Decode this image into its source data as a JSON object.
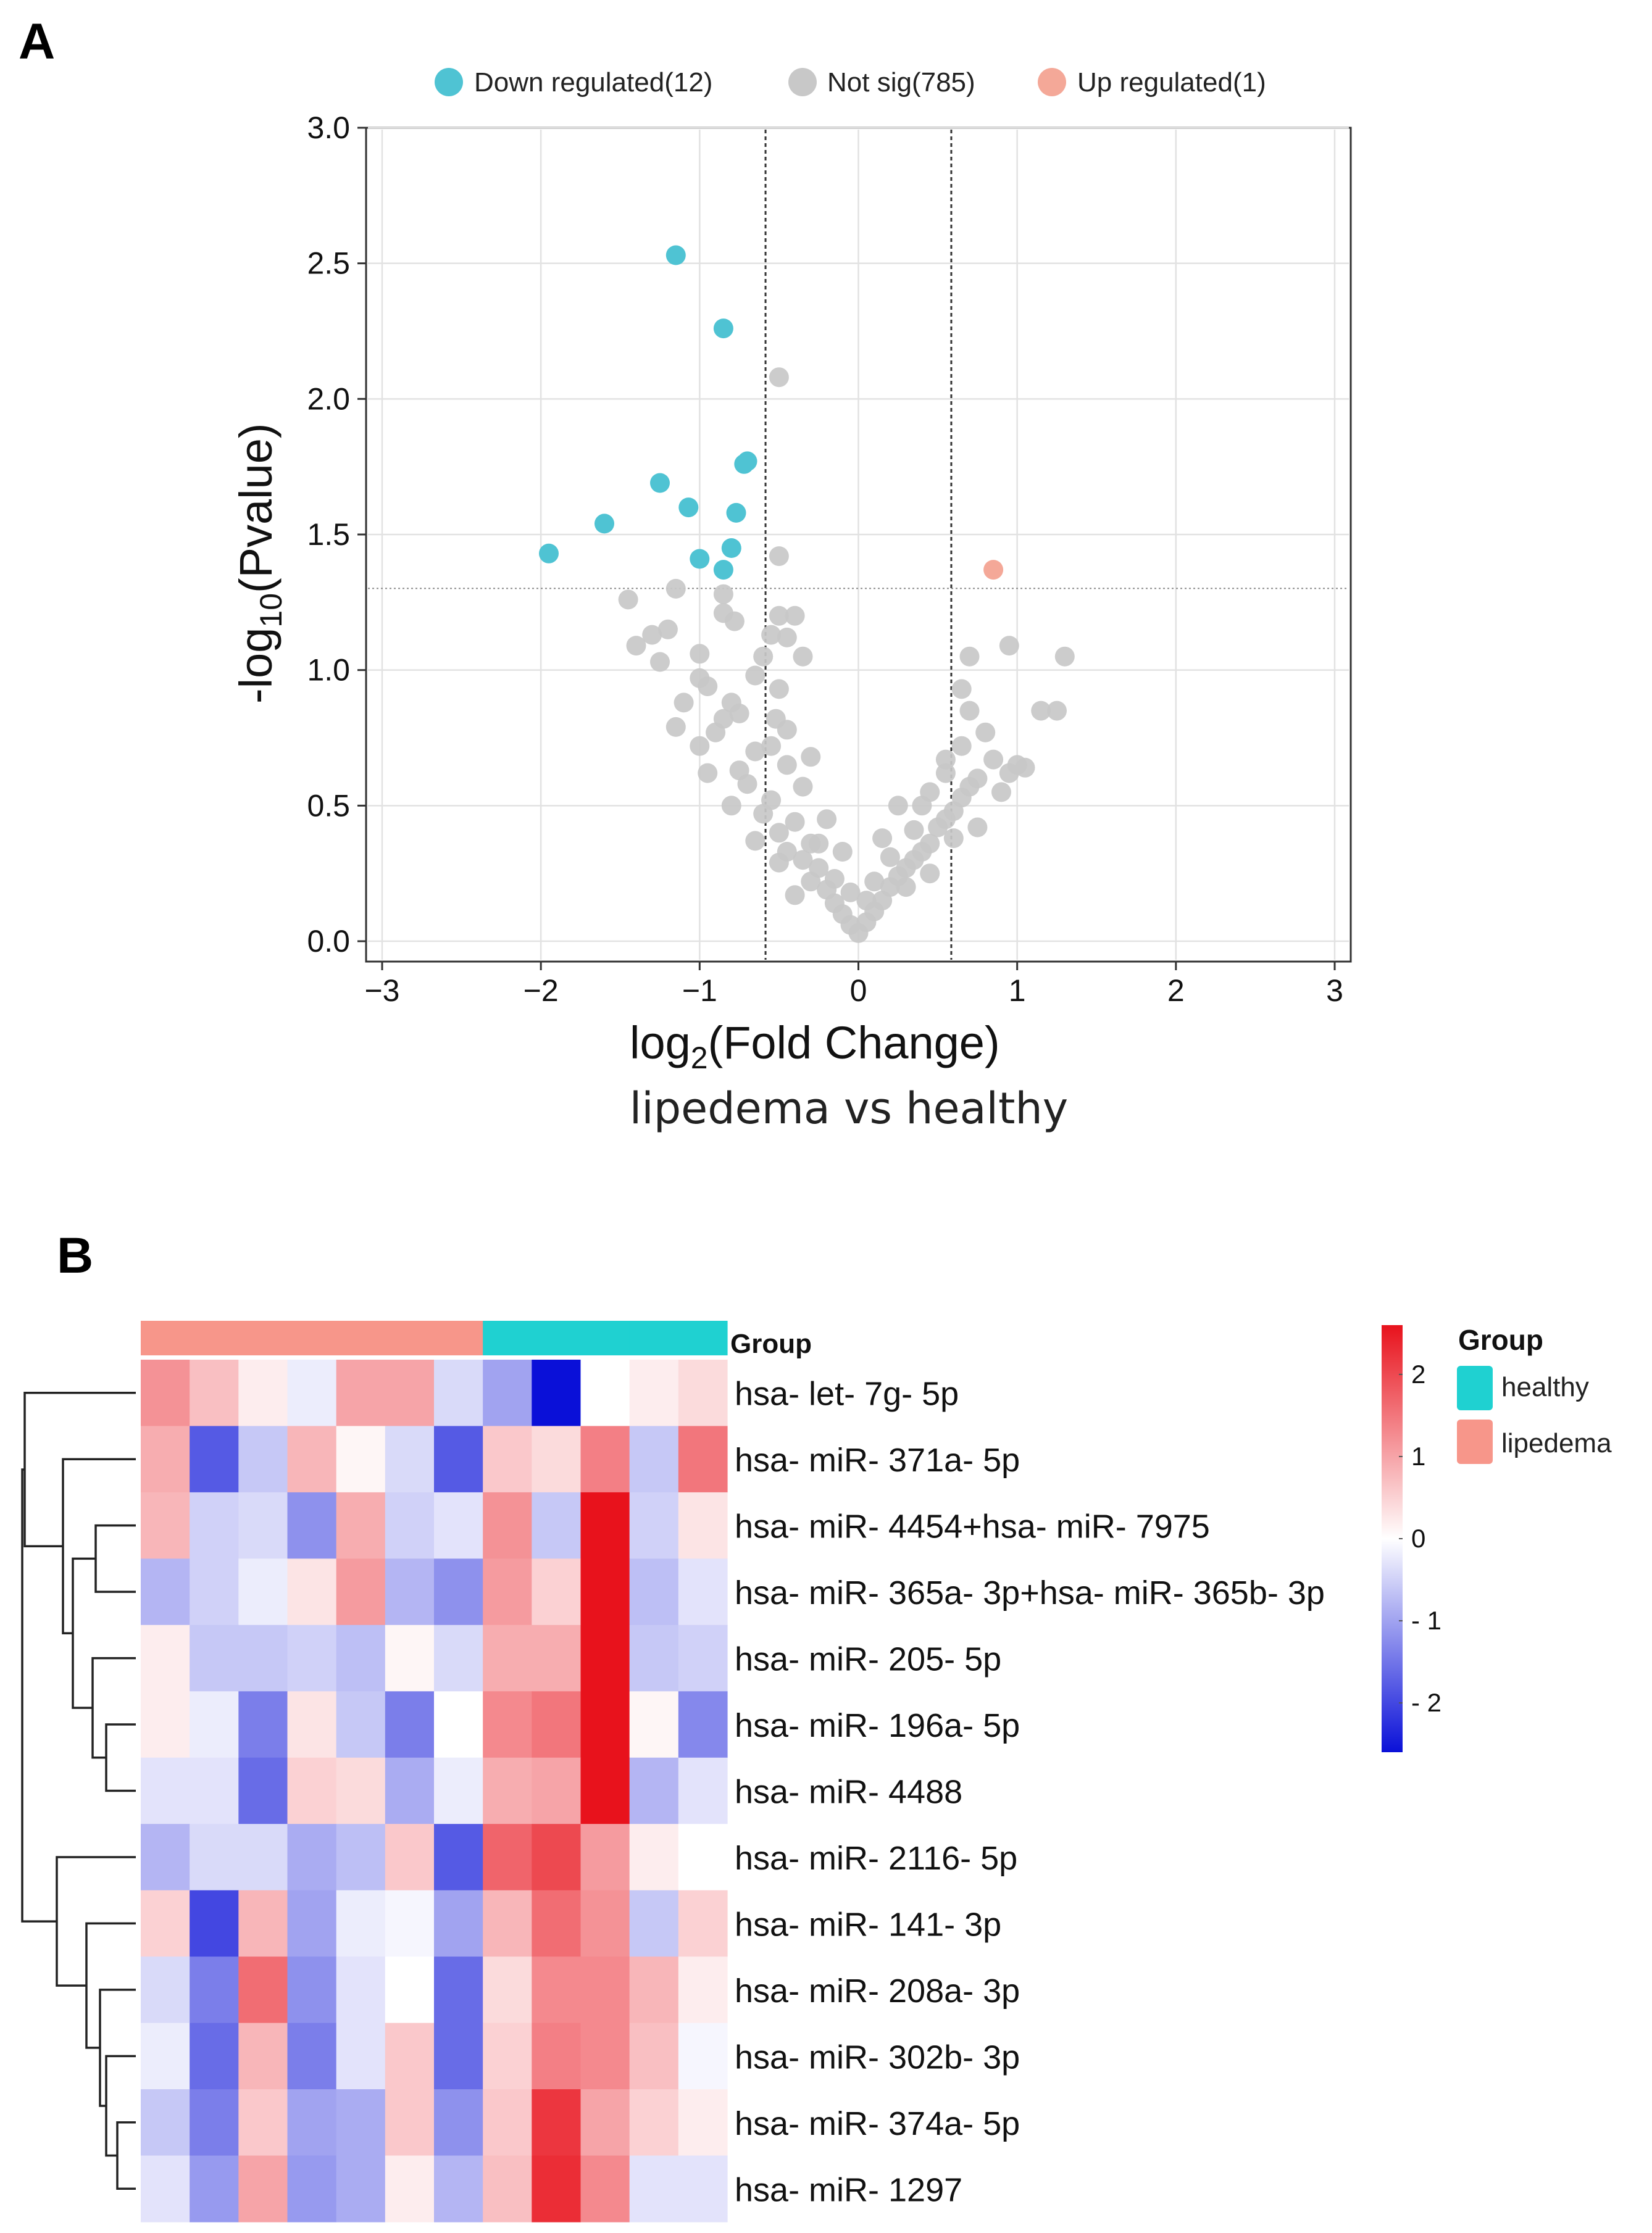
{
  "chart_data": [
    {
      "panel": "A",
      "type": "scatter",
      "title": "",
      "xlabel": "log2(Fold Change)",
      "xlabel_parts": {
        "base": "log",
        "sub": "2",
        "rest": "(Fold Change)"
      },
      "ylabel": "-log10(Pvalue)",
      "ylabel_parts": {
        "base": "-log",
        "sub": "10",
        "rest": "(Pvalue)"
      },
      "subtitle": "lipedema vs healthy",
      "xlim": [
        -3,
        3
      ],
      "ylim": [
        0,
        3
      ],
      "x_ticks": [
        "−3",
        "−2",
        "−1",
        "0",
        "1",
        "2",
        "3"
      ],
      "x_tick_values": [
        -3,
        -2,
        -1,
        0,
        1,
        2,
        3
      ],
      "y_ticks": [
        "0.0",
        "0.5",
        "1.0",
        "1.5",
        "2.0",
        "2.5",
        "3.0"
      ],
      "y_tick_values": [
        0,
        0.5,
        1,
        1.5,
        2,
        2.5,
        3
      ],
      "grid": true,
      "legend_position": "top",
      "thresholds": {
        "vertical": [
          -0.585,
          0.585
        ],
        "horizontal": 1.301
      },
      "series": [
        {
          "name": "Down regulated(12)",
          "color": "#4fc3d3",
          "points": [
            [
              -1.15,
              2.53
            ],
            [
              -0.85,
              2.26
            ],
            [
              -0.7,
              1.77
            ],
            [
              -0.72,
              1.76
            ],
            [
              -1.25,
              1.69
            ],
            [
              -1.07,
              1.6
            ],
            [
              -0.77,
              1.58
            ],
            [
              -1.6,
              1.54
            ],
            [
              -0.8,
              1.45
            ],
            [
              -1.95,
              1.43
            ],
            [
              -1.0,
              1.41
            ],
            [
              -0.85,
              1.37
            ]
          ]
        },
        {
          "name": "Not sig(785)",
          "color": "#c8c8c8",
          "points": [
            [
              -0.5,
              2.08
            ],
            [
              -0.5,
              1.42
            ],
            [
              -1.15,
              1.3
            ],
            [
              -0.85,
              1.28
            ],
            [
              -1.45,
              1.26
            ],
            [
              -0.85,
              1.21
            ],
            [
              -0.78,
              1.18
            ],
            [
              -0.5,
              1.2
            ],
            [
              -0.4,
              1.2
            ],
            [
              -1.2,
              1.15
            ],
            [
              -1.3,
              1.13
            ],
            [
              -0.55,
              1.13
            ],
            [
              -0.45,
              1.12
            ],
            [
              -1.4,
              1.09
            ],
            [
              -1.0,
              1.06
            ],
            [
              -0.6,
              1.05
            ],
            [
              -0.35,
              1.05
            ],
            [
              -1.25,
              1.03
            ],
            [
              -1.0,
              0.97
            ],
            [
              -0.65,
              0.98
            ],
            [
              -0.5,
              0.93
            ],
            [
              -0.95,
              0.94
            ],
            [
              -0.8,
              0.88
            ],
            [
              -1.1,
              0.88
            ],
            [
              -0.52,
              0.82
            ],
            [
              -0.75,
              0.84
            ],
            [
              -0.85,
              0.82
            ],
            [
              -0.45,
              0.78
            ],
            [
              -1.15,
              0.79
            ],
            [
              -0.9,
              0.77
            ],
            [
              -0.55,
              0.72
            ],
            [
              -0.65,
              0.7
            ],
            [
              -1.0,
              0.72
            ],
            [
              -0.3,
              0.68
            ],
            [
              -0.45,
              0.65
            ],
            [
              -0.75,
              0.63
            ],
            [
              -0.95,
              0.62
            ],
            [
              -0.7,
              0.58
            ],
            [
              -0.35,
              0.57
            ],
            [
              -0.55,
              0.52
            ],
            [
              -0.8,
              0.5
            ],
            [
              -0.6,
              0.47
            ],
            [
              -0.4,
              0.44
            ],
            [
              -0.5,
              0.4
            ],
            [
              -0.65,
              0.37
            ],
            [
              -0.3,
              0.36
            ],
            [
              -0.45,
              0.33
            ],
            [
              -0.35,
              0.3
            ],
            [
              -0.25,
              0.27
            ],
            [
              -0.3,
              0.22
            ],
            [
              -0.2,
              0.19
            ],
            [
              -0.15,
              0.14
            ],
            [
              -0.1,
              0.1
            ],
            [
              -0.05,
              0.06
            ],
            [
              0.0,
              0.03
            ],
            [
              0.05,
              0.07
            ],
            [
              0.1,
              0.11
            ],
            [
              0.15,
              0.15
            ],
            [
              0.2,
              0.2
            ],
            [
              0.25,
              0.24
            ],
            [
              0.3,
              0.27
            ],
            [
              0.35,
              0.3
            ],
            [
              0.4,
              0.33
            ],
            [
              0.45,
              0.36
            ],
            [
              0.5,
              0.42
            ],
            [
              0.55,
              0.45
            ],
            [
              0.6,
              0.48
            ],
            [
              0.4,
              0.5
            ],
            [
              0.25,
              0.5
            ],
            [
              0.45,
              0.55
            ],
            [
              0.65,
              0.53
            ],
            [
              0.7,
              0.57
            ],
            [
              0.55,
              0.62
            ],
            [
              0.75,
              0.6
            ],
            [
              0.85,
              0.67
            ],
            [
              0.95,
              0.62
            ],
            [
              1.05,
              0.64
            ],
            [
              0.9,
              0.55
            ],
            [
              0.55,
              0.67
            ],
            [
              0.65,
              0.72
            ],
            [
              0.8,
              0.77
            ],
            [
              0.7,
              0.85
            ],
            [
              0.65,
              0.93
            ],
            [
              0.7,
              1.05
            ],
            [
              0.95,
              1.09
            ],
            [
              1.3,
              1.05
            ],
            [
              1.15,
              0.85
            ],
            [
              1.25,
              0.85
            ],
            [
              1.0,
              0.65
            ],
            [
              0.15,
              0.38
            ],
            [
              0.35,
              0.41
            ],
            [
              0.2,
              0.31
            ],
            [
              0.1,
              0.22
            ],
            [
              -0.15,
              0.23
            ],
            [
              -0.25,
              0.36
            ],
            [
              -0.1,
              0.33
            ],
            [
              -0.2,
              0.45
            ],
            [
              0.3,
              0.2
            ],
            [
              0.45,
              0.25
            ],
            [
              -0.4,
              0.17
            ],
            [
              -0.5,
              0.29
            ],
            [
              0.05,
              0.15
            ],
            [
              -0.05,
              0.18
            ],
            [
              0.6,
              0.38
            ],
            [
              0.75,
              0.42
            ]
          ]
        },
        {
          "name": "Up regulated(1)",
          "color": "#f4a898",
          "points": [
            [
              0.85,
              1.37
            ]
          ]
        }
      ]
    },
    {
      "panel": "B",
      "type": "heatmap",
      "row_labels": [
        "hsa- let- 7g- 5p",
        "hsa- miR- 371a- 5p",
        "hsa- miR- 4454+hsa- miR- 7975",
        "hsa- miR- 365a- 3p+hsa- miR- 365b- 3p",
        "hsa- miR- 205- 5p",
        "hsa- miR- 196a- 5p",
        "hsa- miR- 4488",
        "hsa- miR- 2116- 5p",
        "hsa- miR- 141- 3p",
        "hsa- miR- 208a- 3p",
        "hsa- miR- 302b- 3p",
        "hsa- miR- 374a- 5p",
        "hsa- miR- 1297"
      ],
      "column_groups": [
        "lipedema",
        "lipedema",
        "lipedema",
        "lipedema",
        "lipedema",
        "lipedema",
        "lipedema",
        "healthy",
        "healthy",
        "healthy",
        "healthy",
        "healthy"
      ],
      "group_bar_label": "Group",
      "values": [
        [
          1.2,
          0.7,
          0.2,
          -0.2,
          1.0,
          1.0,
          -0.4,
          -1.0,
          -2.6,
          0.0,
          0.2,
          0.4
        ],
        [
          0.9,
          -1.8,
          -0.6,
          0.8,
          0.1,
          -0.4,
          -1.8,
          0.6,
          0.4,
          1.4,
          -0.6,
          1.5
        ],
        [
          0.8,
          -0.5,
          -0.4,
          -1.2,
          0.9,
          -0.5,
          -0.3,
          1.2,
          -0.6,
          2.8,
          -0.5,
          0.3
        ],
        [
          -0.8,
          -0.5,
          -0.2,
          0.3,
          1.1,
          -0.8,
          -1.2,
          1.1,
          0.5,
          3.0,
          -0.7,
          -0.3
        ],
        [
          0.2,
          -0.6,
          -0.6,
          -0.5,
          -0.7,
          0.1,
          -0.4,
          0.9,
          0.9,
          3.2,
          -0.6,
          -0.5
        ],
        [
          0.2,
          -0.2,
          -1.4,
          0.3,
          -0.6,
          -1.4,
          0.0,
          1.3,
          1.5,
          2.6,
          0.1,
          -1.3
        ],
        [
          -0.3,
          -0.3,
          -1.6,
          0.5,
          0.4,
          -0.9,
          -0.2,
          0.9,
          1.0,
          2.9,
          -0.8,
          -0.3
        ],
        [
          -0.8,
          -0.4,
          -0.4,
          -0.9,
          -0.7,
          0.6,
          -1.8,
          1.7,
          2.0,
          1.1,
          0.2,
          0.0
        ],
        [
          0.5,
          -2.0,
          0.8,
          -1.0,
          -0.2,
          -0.1,
          -1.0,
          0.8,
          1.6,
          1.2,
          -0.6,
          0.5
        ],
        [
          -0.4,
          -1.4,
          1.6,
          -1.2,
          -0.3,
          0.0,
          -1.6,
          0.4,
          1.3,
          1.3,
          0.8,
          0.2
        ],
        [
          -0.2,
          -1.6,
          0.8,
          -1.4,
          -0.3,
          0.6,
          -1.6,
          0.5,
          1.4,
          1.3,
          0.7,
          -0.1
        ],
        [
          -0.6,
          -1.4,
          0.6,
          -1.0,
          -0.9,
          0.6,
          -1.2,
          0.6,
          2.2,
          1.0,
          0.5,
          0.2
        ],
        [
          -0.3,
          -1.1,
          1.0,
          -1.1,
          -0.9,
          0.2,
          -0.8,
          0.7,
          2.3,
          1.3,
          -0.3,
          -0.3
        ]
      ],
      "colorbar": {
        "min": -2.6,
        "max": 2.6,
        "ticks": [
          "2",
          "1",
          "0",
          "- 1",
          "- 2"
        ],
        "tick_values": [
          2,
          1,
          0,
          -1,
          -2
        ]
      },
      "legend": {
        "title": "Group",
        "items": [
          {
            "label": "healthy",
            "color": "#1fd1d1"
          },
          {
            "label": "lipedema",
            "color": "#f7968a"
          }
        ]
      },
      "colors": {
        "low": "#0a10d8",
        "mid": "#ffffff",
        "high": "#e8121c"
      }
    }
  ],
  "panel_labels": {
    "a": "A",
    "b": "B"
  }
}
